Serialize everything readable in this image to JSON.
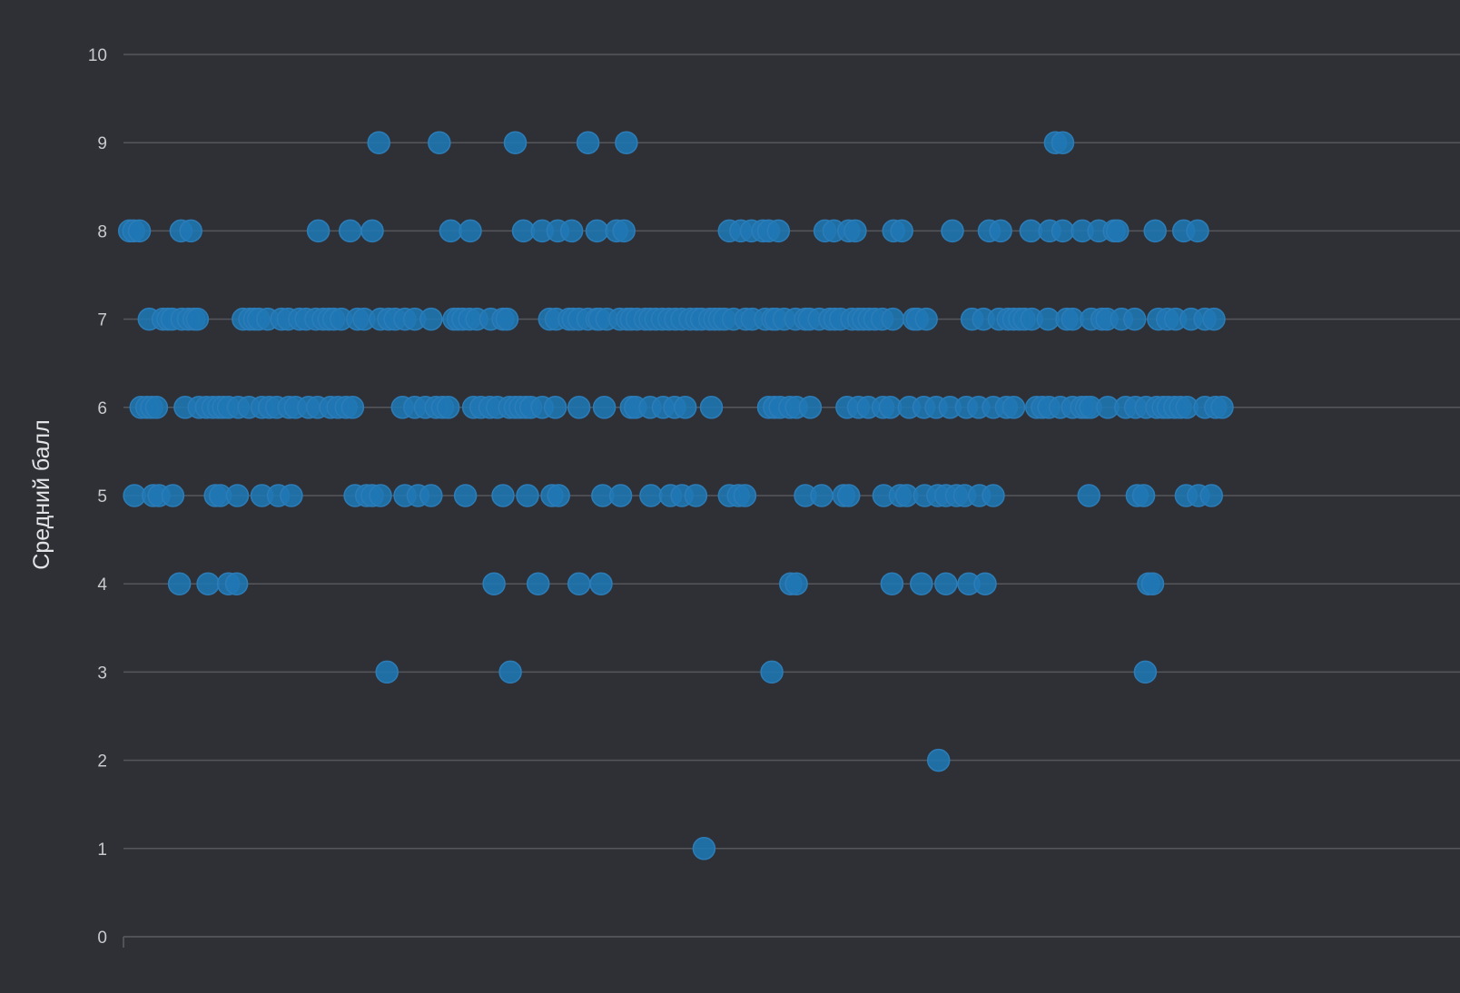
{
  "chart_data": {
    "type": "scatter",
    "title": "",
    "xlabel": "",
    "ylabel": "Средний балл",
    "ylim": [
      0,
      10
    ],
    "yticks": [
      "0",
      "1",
      "2",
      "3",
      "4",
      "5",
      "6",
      "7",
      "8",
      "9",
      "10"
    ],
    "xlim": [
      0,
      1500
    ],
    "grid": true,
    "legend": "none",
    "colors": {
      "background": "#2f3035",
      "point": "#1f77b4",
      "grid": "#56575c",
      "text": "#c9cacd"
    },
    "series": [
      {
        "points": [
          [
            308,
            9
          ],
          [
            382,
            9
          ],
          [
            475,
            9
          ],
          [
            564,
            9
          ],
          [
            611,
            9
          ],
          [
            1136,
            9
          ],
          [
            1145,
            9
          ],
          [
            3,
            8
          ],
          [
            8,
            8
          ],
          [
            15,
            8
          ],
          [
            66,
            8
          ],
          [
            78,
            8
          ],
          [
            234,
            8
          ],
          [
            273,
            8
          ],
          [
            300,
            8
          ],
          [
            396,
            8
          ],
          [
            420,
            8
          ],
          [
            485,
            8
          ],
          [
            508,
            8
          ],
          [
            527,
            8
          ],
          [
            544,
            8
          ],
          [
            575,
            8
          ],
          [
            599,
            8
          ],
          [
            608,
            8
          ],
          [
            737,
            8
          ],
          [
            751,
            8
          ],
          [
            764,
            8
          ],
          [
            778,
            8
          ],
          [
            785,
            8
          ],
          [
            797,
            8
          ],
          [
            854,
            8
          ],
          [
            865,
            8
          ],
          [
            883,
            8
          ],
          [
            891,
            8
          ],
          [
            938,
            8
          ],
          [
            948,
            8
          ],
          [
            1010,
            8
          ],
          [
            1055,
            8
          ],
          [
            1069,
            8
          ],
          [
            1106,
            8
          ],
          [
            1129,
            8
          ],
          [
            1145,
            8
          ],
          [
            1169,
            8
          ],
          [
            1189,
            8
          ],
          [
            1208,
            8
          ],
          [
            1212,
            8
          ],
          [
            1258,
            8
          ],
          [
            1293,
            8
          ],
          [
            1310,
            8
          ],
          [
            27,
            7
          ],
          [
            44,
            7
          ],
          [
            50,
            7
          ],
          [
            55,
            7
          ],
          [
            67,
            7
          ],
          [
            75,
            7
          ],
          [
            82,
            7
          ],
          [
            86,
            7
          ],
          [
            142,
            7
          ],
          [
            150,
            7
          ],
          [
            156,
            7
          ],
          [
            161,
            7
          ],
          [
            172,
            7
          ],
          [
            189,
            7
          ],
          [
            197,
            7
          ],
          [
            211,
            7
          ],
          [
            219,
            7
          ],
          [
            231,
            7
          ],
          [
            240,
            7
          ],
          [
            247,
            7
          ],
          [
            253,
            7
          ],
          [
            262,
            7
          ],
          [
            282,
            7
          ],
          [
            290,
            7
          ],
          [
            310,
            7
          ],
          [
            320,
            7
          ],
          [
            328,
            7
          ],
          [
            340,
            7
          ],
          [
            352,
            7
          ],
          [
            372,
            7
          ],
          [
            400,
            7
          ],
          [
            405,
            7
          ],
          [
            411,
            7
          ],
          [
            419,
            7
          ],
          [
            428,
            7
          ],
          [
            445,
            7
          ],
          [
            460,
            7
          ],
          [
            465,
            7
          ],
          [
            517,
            7
          ],
          [
            525,
            7
          ],
          [
            541,
            7
          ],
          [
            546,
            7
          ],
          [
            553,
            7
          ],
          [
            564,
            7
          ],
          [
            575,
            7
          ],
          [
            578,
            7
          ],
          [
            587,
            7
          ],
          [
            603,
            7
          ],
          [
            612,
            7
          ],
          [
            617,
            7
          ],
          [
            624,
            7
          ],
          [
            634,
            7
          ],
          [
            640,
            7
          ],
          [
            647,
            7
          ],
          [
            655,
            7
          ],
          [
            663,
            7
          ],
          [
            671,
            7
          ],
          [
            679,
            7
          ],
          [
            689,
            7
          ],
          [
            697,
            7
          ],
          [
            703,
            7
          ],
          [
            713,
            7
          ],
          [
            719,
            7
          ],
          [
            725,
            7
          ],
          [
            731,
            7
          ],
          [
            742,
            7
          ],
          [
            757,
            7
          ],
          [
            765,
            7
          ],
          [
            781,
            7
          ],
          [
            790,
            7
          ],
          [
            794,
            7
          ],
          [
            804,
            7
          ],
          [
            818,
            7
          ],
          [
            830,
            7
          ],
          [
            835,
            7
          ],
          [
            847,
            7
          ],
          [
            860,
            7
          ],
          [
            866,
            7
          ],
          [
            873,
            7
          ],
          [
            887,
            7
          ],
          [
            895,
            7
          ],
          [
            901,
            7
          ],
          [
            908,
            7
          ],
          [
            915,
            7
          ],
          [
            924,
            7
          ],
          [
            937,
            7
          ],
          [
            963,
            7
          ],
          [
            967,
            7
          ],
          [
            978,
            7
          ],
          [
            1034,
            7
          ],
          [
            1048,
            7
          ],
          [
            1067,
            7
          ],
          [
            1078,
            7
          ],
          [
            1085,
            7
          ],
          [
            1092,
            7
          ],
          [
            1098,
            7
          ],
          [
            1107,
            7
          ],
          [
            1127,
            7
          ],
          [
            1150,
            7
          ],
          [
            1157,
            7
          ],
          [
            1180,
            7
          ],
          [
            1193,
            7
          ],
          [
            1199,
            7
          ],
          [
            1217,
            7
          ],
          [
            1233,
            7
          ],
          [
            1262,
            7
          ],
          [
            1273,
            7
          ],
          [
            1283,
            7
          ],
          [
            1302,
            7
          ],
          [
            1319,
            7
          ],
          [
            1330,
            7
          ],
          [
            17,
            6
          ],
          [
            24,
            6
          ],
          [
            30,
            6
          ],
          [
            36,
            6
          ],
          [
            71,
            6
          ],
          [
            88,
            6
          ],
          [
            97,
            6
          ],
          [
            105,
            6
          ],
          [
            112,
            6
          ],
          [
            118,
            6
          ],
          [
            124,
            6
          ],
          [
            136,
            6
          ],
          [
            149,
            6
          ],
          [
            165,
            6
          ],
          [
            174,
            6
          ],
          [
            183,
            6
          ],
          [
            198,
            6
          ],
          [
            206,
            6
          ],
          [
            222,
            6
          ],
          [
            233,
            6
          ],
          [
            249,
            6
          ],
          [
            258,
            6
          ],
          [
            268,
            6
          ],
          [
            276,
            6
          ],
          [
            337,
            6
          ],
          [
            352,
            6
          ],
          [
            365,
            6
          ],
          [
            378,
            6
          ],
          [
            386,
            6
          ],
          [
            393,
            6
          ],
          [
            424,
            6
          ],
          [
            433,
            6
          ],
          [
            444,
            6
          ],
          [
            453,
            6
          ],
          [
            468,
            6
          ],
          [
            475,
            6
          ],
          [
            481,
            6
          ],
          [
            488,
            6
          ],
          [
            494,
            6
          ],
          [
            508,
            6
          ],
          [
            524,
            6
          ],
          [
            553,
            6
          ],
          [
            584,
            6
          ],
          [
            617,
            6
          ],
          [
            622,
            6
          ],
          [
            640,
            6
          ],
          [
            656,
            6
          ],
          [
            670,
            6
          ],
          [
            683,
            6
          ],
          [
            715,
            6
          ],
          [
            785,
            6
          ],
          [
            792,
            6
          ],
          [
            799,
            6
          ],
          [
            811,
            6
          ],
          [
            819,
            6
          ],
          [
            836,
            6
          ],
          [
            881,
            6
          ],
          [
            895,
            6
          ],
          [
            907,
            6
          ],
          [
            925,
            6
          ],
          [
            934,
            6
          ],
          [
            957,
            6
          ],
          [
            975,
            6
          ],
          [
            990,
            6
          ],
          [
            1007,
            6
          ],
          [
            1027,
            6
          ],
          [
            1042,
            6
          ],
          [
            1060,
            6
          ],
          [
            1076,
            6
          ],
          [
            1085,
            6
          ],
          [
            1113,
            6
          ],
          [
            1120,
            6
          ],
          [
            1128,
            6
          ],
          [
            1142,
            6
          ],
          [
            1157,
            6
          ],
          [
            1168,
            6
          ],
          [
            1174,
            6
          ],
          [
            1179,
            6
          ],
          [
            1200,
            6
          ],
          [
            1222,
            6
          ],
          [
            1234,
            6
          ],
          [
            1247,
            6
          ],
          [
            1260,
            6
          ],
          [
            1268,
            6
          ],
          [
            1274,
            6
          ],
          [
            1282,
            6
          ],
          [
            1289,
            6
          ],
          [
            1297,
            6
          ],
          [
            1319,
            6
          ],
          [
            1332,
            6
          ],
          [
            1340,
            6
          ],
          [
            9,
            5
          ],
          [
            32,
            5
          ],
          [
            39,
            5
          ],
          [
            56,
            5
          ],
          [
            108,
            5
          ],
          [
            114,
            5
          ],
          [
            135,
            5
          ],
          [
            165,
            5
          ],
          [
            185,
            5
          ],
          [
            201,
            5
          ],
          [
            279,
            5
          ],
          [
            293,
            5
          ],
          [
            300,
            5
          ],
          [
            310,
            5
          ],
          [
            340,
            5
          ],
          [
            356,
            5
          ],
          [
            372,
            5
          ],
          [
            414,
            5
          ],
          [
            460,
            5
          ],
          [
            490,
            5
          ],
          [
            520,
            5
          ],
          [
            528,
            5
          ],
          [
            582,
            5
          ],
          [
            604,
            5
          ],
          [
            641,
            5
          ],
          [
            665,
            5
          ],
          [
            679,
            5
          ],
          [
            696,
            5
          ],
          [
            737,
            5
          ],
          [
            748,
            5
          ],
          [
            756,
            5
          ],
          [
            830,
            5
          ],
          [
            850,
            5
          ],
          [
            877,
            5
          ],
          [
            883,
            5
          ],
          [
            926,
            5
          ],
          [
            946,
            5
          ],
          [
            954,
            5
          ],
          [
            976,
            5
          ],
          [
            992,
            5
          ],
          [
            1002,
            5
          ],
          [
            1015,
            5
          ],
          [
            1025,
            5
          ],
          [
            1043,
            5
          ],
          [
            1060,
            5
          ],
          [
            1177,
            5
          ],
          [
            1236,
            5
          ],
          [
            1244,
            5
          ],
          [
            1296,
            5
          ],
          [
            1311,
            5
          ],
          [
            1327,
            5
          ],
          [
            64,
            4
          ],
          [
            99,
            4
          ],
          [
            124,
            4
          ],
          [
            134,
            4
          ],
          [
            449,
            4
          ],
          [
            503,
            4
          ],
          [
            553,
            4
          ],
          [
            580,
            4
          ],
          [
            812,
            4
          ],
          [
            819,
            4
          ],
          [
            936,
            4
          ],
          [
            972,
            4
          ],
          [
            1002,
            4
          ],
          [
            1030,
            4
          ],
          [
            1050,
            4
          ],
          [
            1250,
            4
          ],
          [
            1255,
            4
          ],
          [
            318,
            3
          ],
          [
            469,
            3
          ],
          [
            789,
            3
          ],
          [
            1246,
            3
          ],
          [
            993,
            2
          ],
          [
            706,
            1
          ]
        ]
      }
    ]
  }
}
